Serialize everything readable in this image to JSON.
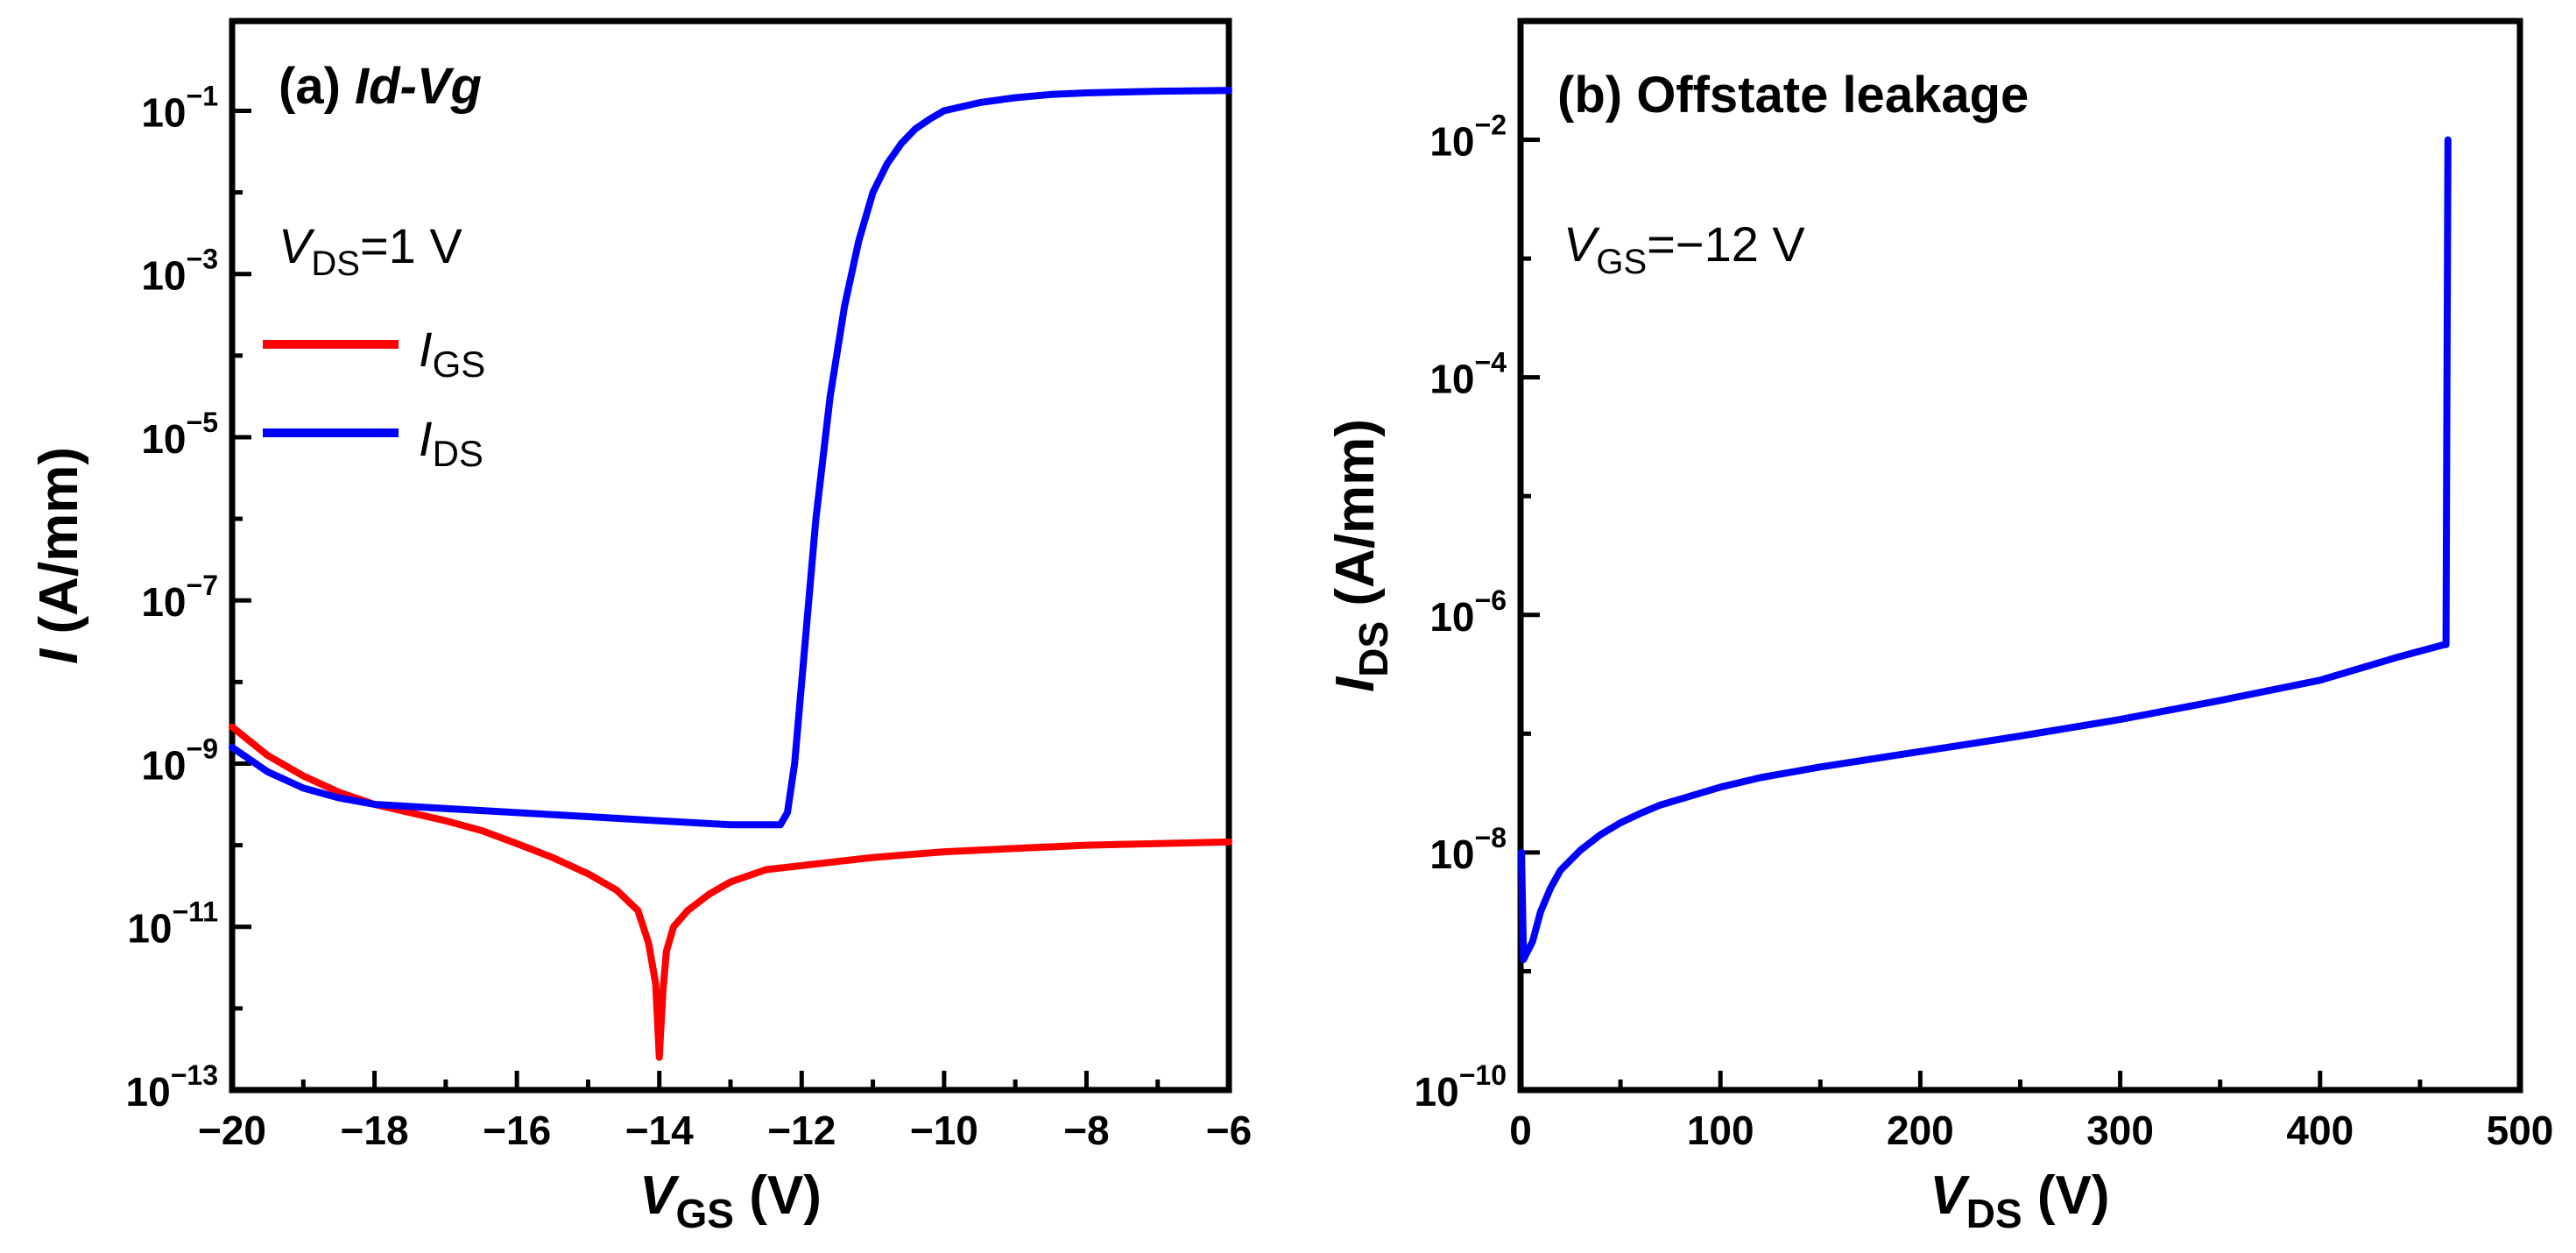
{
  "colors": {
    "igs": "#ff0000",
    "ids": "#0000ff",
    "axis": "#000000"
  },
  "chart_data": [
    {
      "type": "line",
      "title": "(a) Id-Vg",
      "title_prefix": "(a)",
      "title_main": "Id-Vg",
      "annotation": {
        "sym": "V",
        "sub": "DS",
        "rest": "=1 V"
      },
      "xlabel": {
        "sym": "V",
        "sub": "GS",
        "rest": " (V)"
      },
      "ylabel": {
        "sym": "I",
        "rest": " (A/mm)"
      },
      "xlim": [
        -20,
        -6
      ],
      "ylim_log10": [
        -13,
        0.1
      ],
      "xticks": [
        {
          "v": -20,
          "label": "−20"
        },
        {
          "v": -18,
          "label": "−18"
        },
        {
          "v": -16,
          "label": "−16"
        },
        {
          "v": -14,
          "label": "−14"
        },
        {
          "v": -12,
          "label": "−12"
        },
        {
          "v": -10,
          "label": "−10"
        },
        {
          "v": -8,
          "label": "−8"
        },
        {
          "v": -6,
          "label": "−6"
        }
      ],
      "xminor": [
        -19,
        -17,
        -15,
        -13,
        -11,
        -9,
        -7
      ],
      "yticks": [
        {
          "e": -13,
          "base": "10",
          "exp": "−13"
        },
        {
          "e": -11,
          "base": "10",
          "exp": "−11"
        },
        {
          "e": -9,
          "base": "10",
          "exp": "−9"
        },
        {
          "e": -7,
          "base": "10",
          "exp": "−7"
        },
        {
          "e": -5,
          "base": "10",
          "exp": "−5"
        },
        {
          "e": -3,
          "base": "10",
          "exp": "−3"
        },
        {
          "e": -1,
          "base": "10",
          "exp": "−1"
        }
      ],
      "yminor": [
        -12,
        -10,
        -8,
        -6,
        -4,
        -2
      ],
      "legend": [
        {
          "sym": "I",
          "sub": "GS",
          "series": "IGS"
        },
        {
          "sym": "I",
          "sub": "DS",
          "series": "IDS"
        }
      ],
      "series": [
        {
          "name": "IGS",
          "color_key": "igs",
          "x": [
            -20,
            -19.5,
            -19,
            -18.5,
            -18,
            -17.5,
            -17,
            -16.5,
            -16,
            -15.5,
            -15,
            -14.6,
            -14.3,
            -14.15,
            -14.05,
            -14.0,
            -13.95,
            -13.9,
            -13.8,
            -13.6,
            -13.3,
            -13,
            -12.5,
            -12,
            -11.5,
            -11,
            -10,
            -9,
            -8,
            -7,
            -6
          ],
          "log10y": [
            -8.55,
            -8.9,
            -9.15,
            -9.35,
            -9.5,
            -9.6,
            -9.7,
            -9.82,
            -9.98,
            -10.15,
            -10.35,
            -10.55,
            -10.8,
            -11.2,
            -11.7,
            -12.6,
            -11.8,
            -11.3,
            -11.0,
            -10.8,
            -10.6,
            -10.45,
            -10.3,
            -10.25,
            -10.2,
            -10.15,
            -10.08,
            -10.04,
            -10.0,
            -9.98,
            -9.96
          ]
        },
        {
          "name": "IDS",
          "color_key": "ids",
          "x": [
            -20,
            -19.5,
            -19,
            -18.5,
            -18,
            -17,
            -16,
            -15,
            -14,
            -13,
            -12.3,
            -12.2,
            -12.1,
            -12.0,
            -11.9,
            -11.8,
            -11.6,
            -11.4,
            -11.2,
            -11.0,
            -10.8,
            -10.6,
            -10.4,
            -10.2,
            -10.0,
            -9.5,
            -9.0,
            -8.5,
            -8.0,
            -7.0,
            -6.0
          ],
          "log10y": [
            -8.8,
            -9.1,
            -9.3,
            -9.42,
            -9.5,
            -9.55,
            -9.6,
            -9.65,
            -9.7,
            -9.75,
            -9.75,
            -9.6,
            -9.0,
            -8.0,
            -7.0,
            -6.0,
            -4.5,
            -3.4,
            -2.6,
            -2.0,
            -1.65,
            -1.4,
            -1.22,
            -1.1,
            -1.0,
            -0.9,
            -0.84,
            -0.8,
            -0.78,
            -0.76,
            -0.75
          ]
        }
      ]
    },
    {
      "type": "line",
      "title": "(b) Offstate leakage",
      "title_prefix": "(b)",
      "title_main": "Offstate leakage",
      "annotation": {
        "sym": "V",
        "sub": "GS",
        "rest": "=−12 V"
      },
      "xlabel": {
        "sym": "V",
        "sub": "DS",
        "rest": " (V)"
      },
      "ylabel": {
        "sym": "I",
        "sub": "DS",
        "rest": " (A/mm)"
      },
      "xlim": [
        0,
        500
      ],
      "ylim_log10": [
        -10,
        -1.0
      ],
      "xticks": [
        {
          "v": 0,
          "label": "0"
        },
        {
          "v": 100,
          "label": "100"
        },
        {
          "v": 200,
          "label": "200"
        },
        {
          "v": 300,
          "label": "300"
        },
        {
          "v": 400,
          "label": "400"
        },
        {
          "v": 500,
          "label": "500"
        }
      ],
      "xminor": [
        50,
        150,
        250,
        350,
        450
      ],
      "yticks": [
        {
          "e": -10,
          "base": "10",
          "exp": "−10"
        },
        {
          "e": -8,
          "base": "10",
          "exp": "−8"
        },
        {
          "e": -6,
          "base": "10",
          "exp": "−6"
        },
        {
          "e": -4,
          "base": "10",
          "exp": "−4"
        },
        {
          "e": -2,
          "base": "10",
          "exp": "−2"
        }
      ],
      "yminor": [
        -9,
        -7,
        -5,
        -3
      ],
      "legend": [],
      "series": [
        {
          "name": "IDS",
          "color_key": "ids",
          "x": [
            0.5,
            1.5,
            3,
            6,
            10,
            15,
            20,
            30,
            40,
            50,
            60,
            70,
            80,
            100,
            120,
            150,
            200,
            250,
            300,
            350,
            400,
            440,
            462,
            463,
            463.5,
            464
          ],
          "log10y": [
            -8.0,
            -8.9,
            -8.85,
            -8.75,
            -8.5,
            -8.3,
            -8.15,
            -7.98,
            -7.85,
            -7.75,
            -7.67,
            -7.6,
            -7.55,
            -7.45,
            -7.37,
            -7.28,
            -7.15,
            -7.02,
            -6.88,
            -6.72,
            -6.55,
            -6.35,
            -6.25,
            -6.25,
            -4.0,
            -2.0
          ]
        }
      ]
    }
  ]
}
